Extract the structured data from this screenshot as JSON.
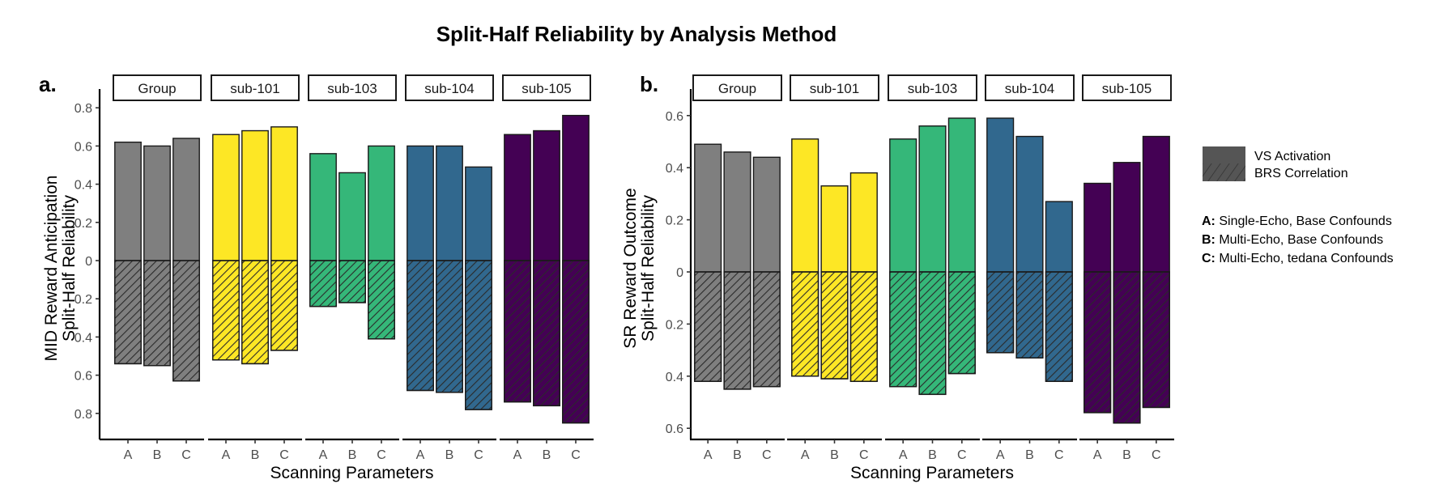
{
  "chart_data": {
    "type": "bar",
    "title": "Split-Half Reliability by Analysis Method",
    "legend": {
      "position": "right",
      "fill_entries": [
        {
          "label": "VS Activation",
          "pattern": "solid"
        },
        {
          "label": "BRS Correlation",
          "pattern": "hatched"
        }
      ],
      "method_entries": [
        {
          "key": "A:",
          "label": "Single-Echo, Base Confounds"
        },
        {
          "key": "B:",
          "label": "Multi-Echo, Base Confounds"
        },
        {
          "key": "C:",
          "label": "Multi-Echo, tedana Confounds"
        }
      ]
    },
    "colors": {
      "Group": "#7f7f7f",
      "sub-101": "#fde725",
      "sub-103": "#35b779",
      "sub-104": "#31688e",
      "sub-105": "#440154"
    },
    "panels": [
      {
        "tag": "a.",
        "ylabel_line1": "MID Reward Anticipation",
        "ylabel_line2": "Split-Half Reliability",
        "xlabel": "Scanning Parameters",
        "ylim_top": 0.8,
        "ylim_bottom": 0.8,
        "yticks_top": [
          "0.8",
          "0.6",
          "0.4",
          "0.2",
          "0"
        ],
        "yticks_bottom": [
          "0.2",
          "0.4",
          "0.6",
          "0.8"
        ],
        "ytick_values_top": [
          0.8,
          0.6,
          0.4,
          0.2,
          0
        ],
        "ytick_values_bottom": [
          0.2,
          0.4,
          0.6,
          0.8
        ],
        "categories": [
          "A",
          "B",
          "C"
        ],
        "facets": [
          {
            "name": "Group",
            "vs_activation": [
              0.62,
              0.6,
              0.64
            ],
            "brs_correlation": [
              0.54,
              0.55,
              0.63
            ]
          },
          {
            "name": "sub-101",
            "vs_activation": [
              0.66,
              0.68,
              0.7
            ],
            "brs_correlation": [
              0.52,
              0.54,
              0.47
            ]
          },
          {
            "name": "sub-103",
            "vs_activation": [
              0.56,
              0.46,
              0.6
            ],
            "brs_correlation": [
              0.24,
              0.22,
              0.41
            ]
          },
          {
            "name": "sub-104",
            "vs_activation": [
              0.6,
              0.6,
              0.49
            ],
            "brs_correlation": [
              0.68,
              0.69,
              0.78
            ]
          },
          {
            "name": "sub-105",
            "vs_activation": [
              0.66,
              0.68,
              0.76
            ],
            "brs_correlation": [
              0.74,
              0.76,
              0.85
            ]
          }
        ]
      },
      {
        "tag": "b.",
        "ylabel_line1": "SR Reward Outcome",
        "ylabel_line2": "Split-Half Reliability",
        "xlabel": "Scanning Parameters",
        "ylim_top": 0.65,
        "ylim_bottom": 0.63,
        "yticks_top": [
          "0.6",
          "0.4",
          "0.2",
          "0"
        ],
        "yticks_bottom": [
          "0.2",
          "0.4",
          "0.6"
        ],
        "ytick_values_top": [
          0.6,
          0.4,
          0.2,
          0
        ],
        "ytick_values_bottom": [
          0.2,
          0.4,
          0.6
        ],
        "categories": [
          "A",
          "B",
          "C"
        ],
        "facets": [
          {
            "name": "Group",
            "vs_activation": [
              0.49,
              0.46,
              0.44
            ],
            "brs_correlation": [
              0.42,
              0.45,
              0.44
            ]
          },
          {
            "name": "sub-101",
            "vs_activation": [
              0.51,
              0.33,
              0.38
            ],
            "brs_correlation": [
              0.4,
              0.41,
              0.42
            ]
          },
          {
            "name": "sub-103",
            "vs_activation": [
              0.51,
              0.56,
              0.59
            ],
            "brs_correlation": [
              0.44,
              0.47,
              0.39
            ]
          },
          {
            "name": "sub-104",
            "vs_activation": [
              0.59,
              0.52,
              0.27
            ],
            "brs_correlation": [
              0.31,
              0.33,
              0.42
            ]
          },
          {
            "name": "sub-105",
            "vs_activation": [
              0.34,
              0.42,
              0.52
            ],
            "brs_correlation": [
              0.54,
              0.58,
              0.52
            ]
          }
        ]
      }
    ]
  }
}
